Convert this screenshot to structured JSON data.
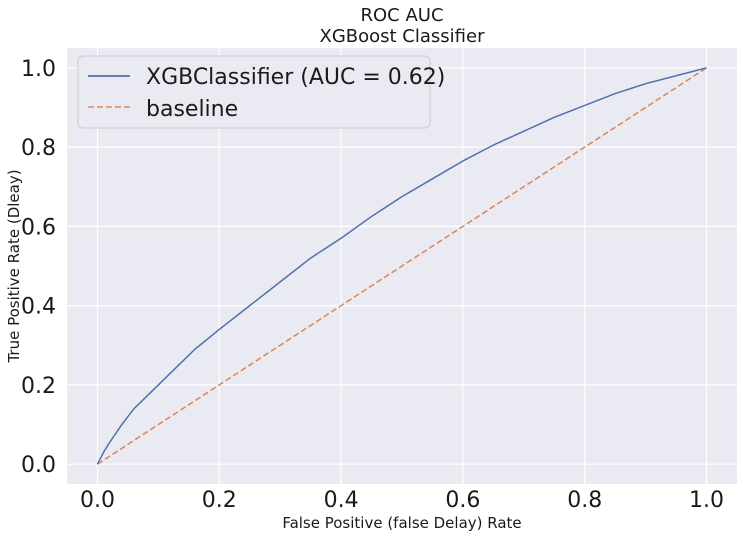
{
  "chart_data": {
    "type": "line",
    "title": "ROC AUC",
    "subtitle": "XGBoost Classifier",
    "xlabel": "False Positive (false Delay) Rate",
    "ylabel": "True Positive Rate (Dleay)",
    "xlim": [
      -0.05,
      1.05
    ],
    "ylim": [
      -0.05,
      1.05
    ],
    "x_ticks": [
      "0.0",
      "0.2",
      "0.4",
      "0.6",
      "0.8",
      "1.0"
    ],
    "y_ticks": [
      "0.0",
      "0.2",
      "0.4",
      "0.6",
      "0.8",
      "1.0"
    ],
    "grid": true,
    "legend_position": "top-left",
    "series": [
      {
        "name": "XGBClassifier (AUC = 0.62)",
        "color": "#4c72b0",
        "style": "solid",
        "x": [
          0.0,
          0.01,
          0.02,
          0.04,
          0.06,
          0.08,
          0.1,
          0.13,
          0.16,
          0.2,
          0.25,
          0.3,
          0.35,
          0.4,
          0.45,
          0.5,
          0.55,
          0.6,
          0.65,
          0.7,
          0.75,
          0.8,
          0.85,
          0.9,
          0.95,
          1.0
        ],
        "y": [
          0.0,
          0.03,
          0.055,
          0.1,
          0.14,
          0.17,
          0.2,
          0.245,
          0.29,
          0.34,
          0.4,
          0.46,
          0.52,
          0.57,
          0.625,
          0.675,
          0.72,
          0.765,
          0.805,
          0.84,
          0.875,
          0.905,
          0.935,
          0.96,
          0.98,
          1.0
        ]
      },
      {
        "name": "baseline",
        "color": "#dd8452",
        "style": "dashed",
        "x": [
          0.0,
          1.0
        ],
        "y": [
          0.0,
          1.0
        ]
      }
    ]
  }
}
